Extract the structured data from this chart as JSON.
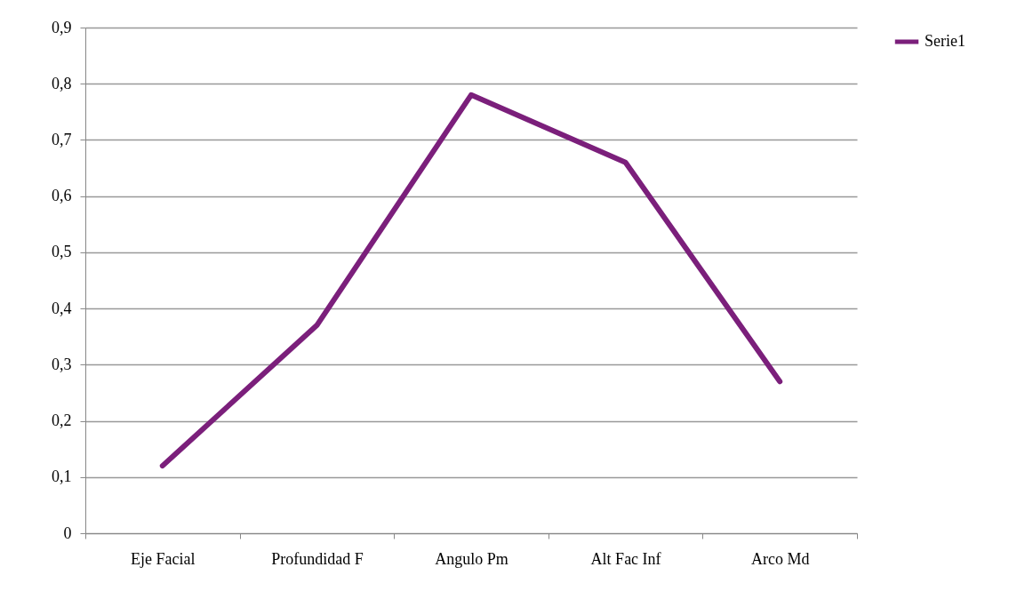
{
  "chart_data": {
    "type": "line",
    "categories": [
      "Eje Facial",
      "Profundidad F",
      "Angulo Pm",
      "Alt Fac Inf",
      "Arco Md"
    ],
    "series": [
      {
        "name": "Serie1",
        "color": "#7b1f7b",
        "values": [
          0.12,
          0.37,
          0.78,
          0.66,
          0.27
        ]
      }
    ],
    "ylim": [
      0,
      0.9
    ],
    "yticks": [
      0,
      {
        "value": 0.1,
        "label": "0,1"
      },
      {
        "value": 0.2,
        "label": "0,2"
      },
      {
        "value": 0.3,
        "label": "0,3"
      },
      {
        "value": 0.4,
        "label": "0,4"
      },
      {
        "value": 0.5,
        "label": "0,5"
      },
      {
        "value": 0.6,
        "label": "0,6"
      },
      {
        "value": 0.7,
        "label": "0,7"
      },
      {
        "value": 0.8,
        "label": "0,8"
      },
      {
        "value": 0.9,
        "label": "0,9"
      }
    ],
    "grid": "y",
    "legend": "right",
    "marker": "none",
    "line_style": "solid"
  }
}
